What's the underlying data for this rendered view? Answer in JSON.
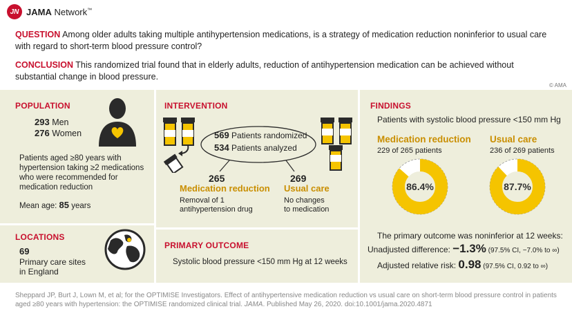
{
  "brand": {
    "logo_mark": "JN",
    "name_bold": "JAMA",
    "name_rest": " Network",
    "tm": "™"
  },
  "question": {
    "label": "QUESTION",
    "text": " Among older adults taking multiple antihypertension medications, is a strategy of medication reduction noninferior to usual care with regard to short-term blood pressure control?"
  },
  "conclusion": {
    "label": "CONCLUSION",
    "text": " This randomized trial found that in elderly adults, reduction of antihypertension medication can be achieved without substantial change in blood pressure."
  },
  "copyright": "© AMA",
  "population": {
    "title": "POPULATION",
    "men_count": "293",
    "men_label": "Men",
    "women_count": "276",
    "women_label": "Women",
    "description": "Patients aged ≥80 years with hypertension taking ≥2 medications who were recommended for medication reduction",
    "mean_age_label": "Mean age: ",
    "mean_age_value": "85",
    "mean_age_unit": " years"
  },
  "locations": {
    "title": "LOCATIONS",
    "count": "69",
    "line1": "Primary care sites",
    "line2": "in England"
  },
  "intervention": {
    "title": "INTERVENTION",
    "randomized_count": "569",
    "randomized_label": " Patients randomized",
    "analyzed_count": "534",
    "analyzed_label": " Patients analyzed",
    "arm1": {
      "count": "265",
      "name": "Medication reduction",
      "desc1": "Removal of 1",
      "desc2": "antihypertension drug"
    },
    "arm2": {
      "count": "269",
      "name": "Usual care",
      "desc1": "No changes",
      "desc2": "to medication"
    }
  },
  "primary_outcome": {
    "title": "PRIMARY OUTCOME",
    "text": "Systolic blood pressure <150 mm Hg at 12 weeks"
  },
  "findings": {
    "title": "FINDINGS",
    "subtitle": "Patients with systolic blood pressure <150 mm Hg",
    "arm1": {
      "name": "Medication reduction",
      "detail": "229 of 265 patients",
      "percent": 86.4,
      "percent_label": "86.4%"
    },
    "arm2": {
      "name": "Usual care",
      "detail": "236 of 269 patients",
      "percent": 87.7,
      "percent_label": "87.7%"
    },
    "noninferior": "The primary outcome was noninferior at 12 weeks:",
    "unadjusted_label": "Unadjusted difference: ",
    "unadjusted_value": "−1.3%",
    "unadjusted_ci": " (97.5% CI, −7.0% to ∞)",
    "adjusted_label": "Adjusted relative risk: ",
    "adjusted_value": "0.98",
    "adjusted_ci": " (97.5% CI, 0.92 to ∞)"
  },
  "colors": {
    "accent": "#c8102e",
    "gold": "#f5c400",
    "panel": "#eeeedc"
  },
  "footer": {
    "text": "Sheppard JP, Burt J, Lown M, et al; for the OPTIMISE Investigators. Effect of antihypertensive medication reduction vs usual care on short-term blood pressure control in patients aged ≥80 years with hypertension: the OPTIMISE randomized clinical trial. ",
    "journal": "JAMA",
    "rest": ". Published May 26, 2020. doi:10.1001/jama.2020.4871"
  }
}
